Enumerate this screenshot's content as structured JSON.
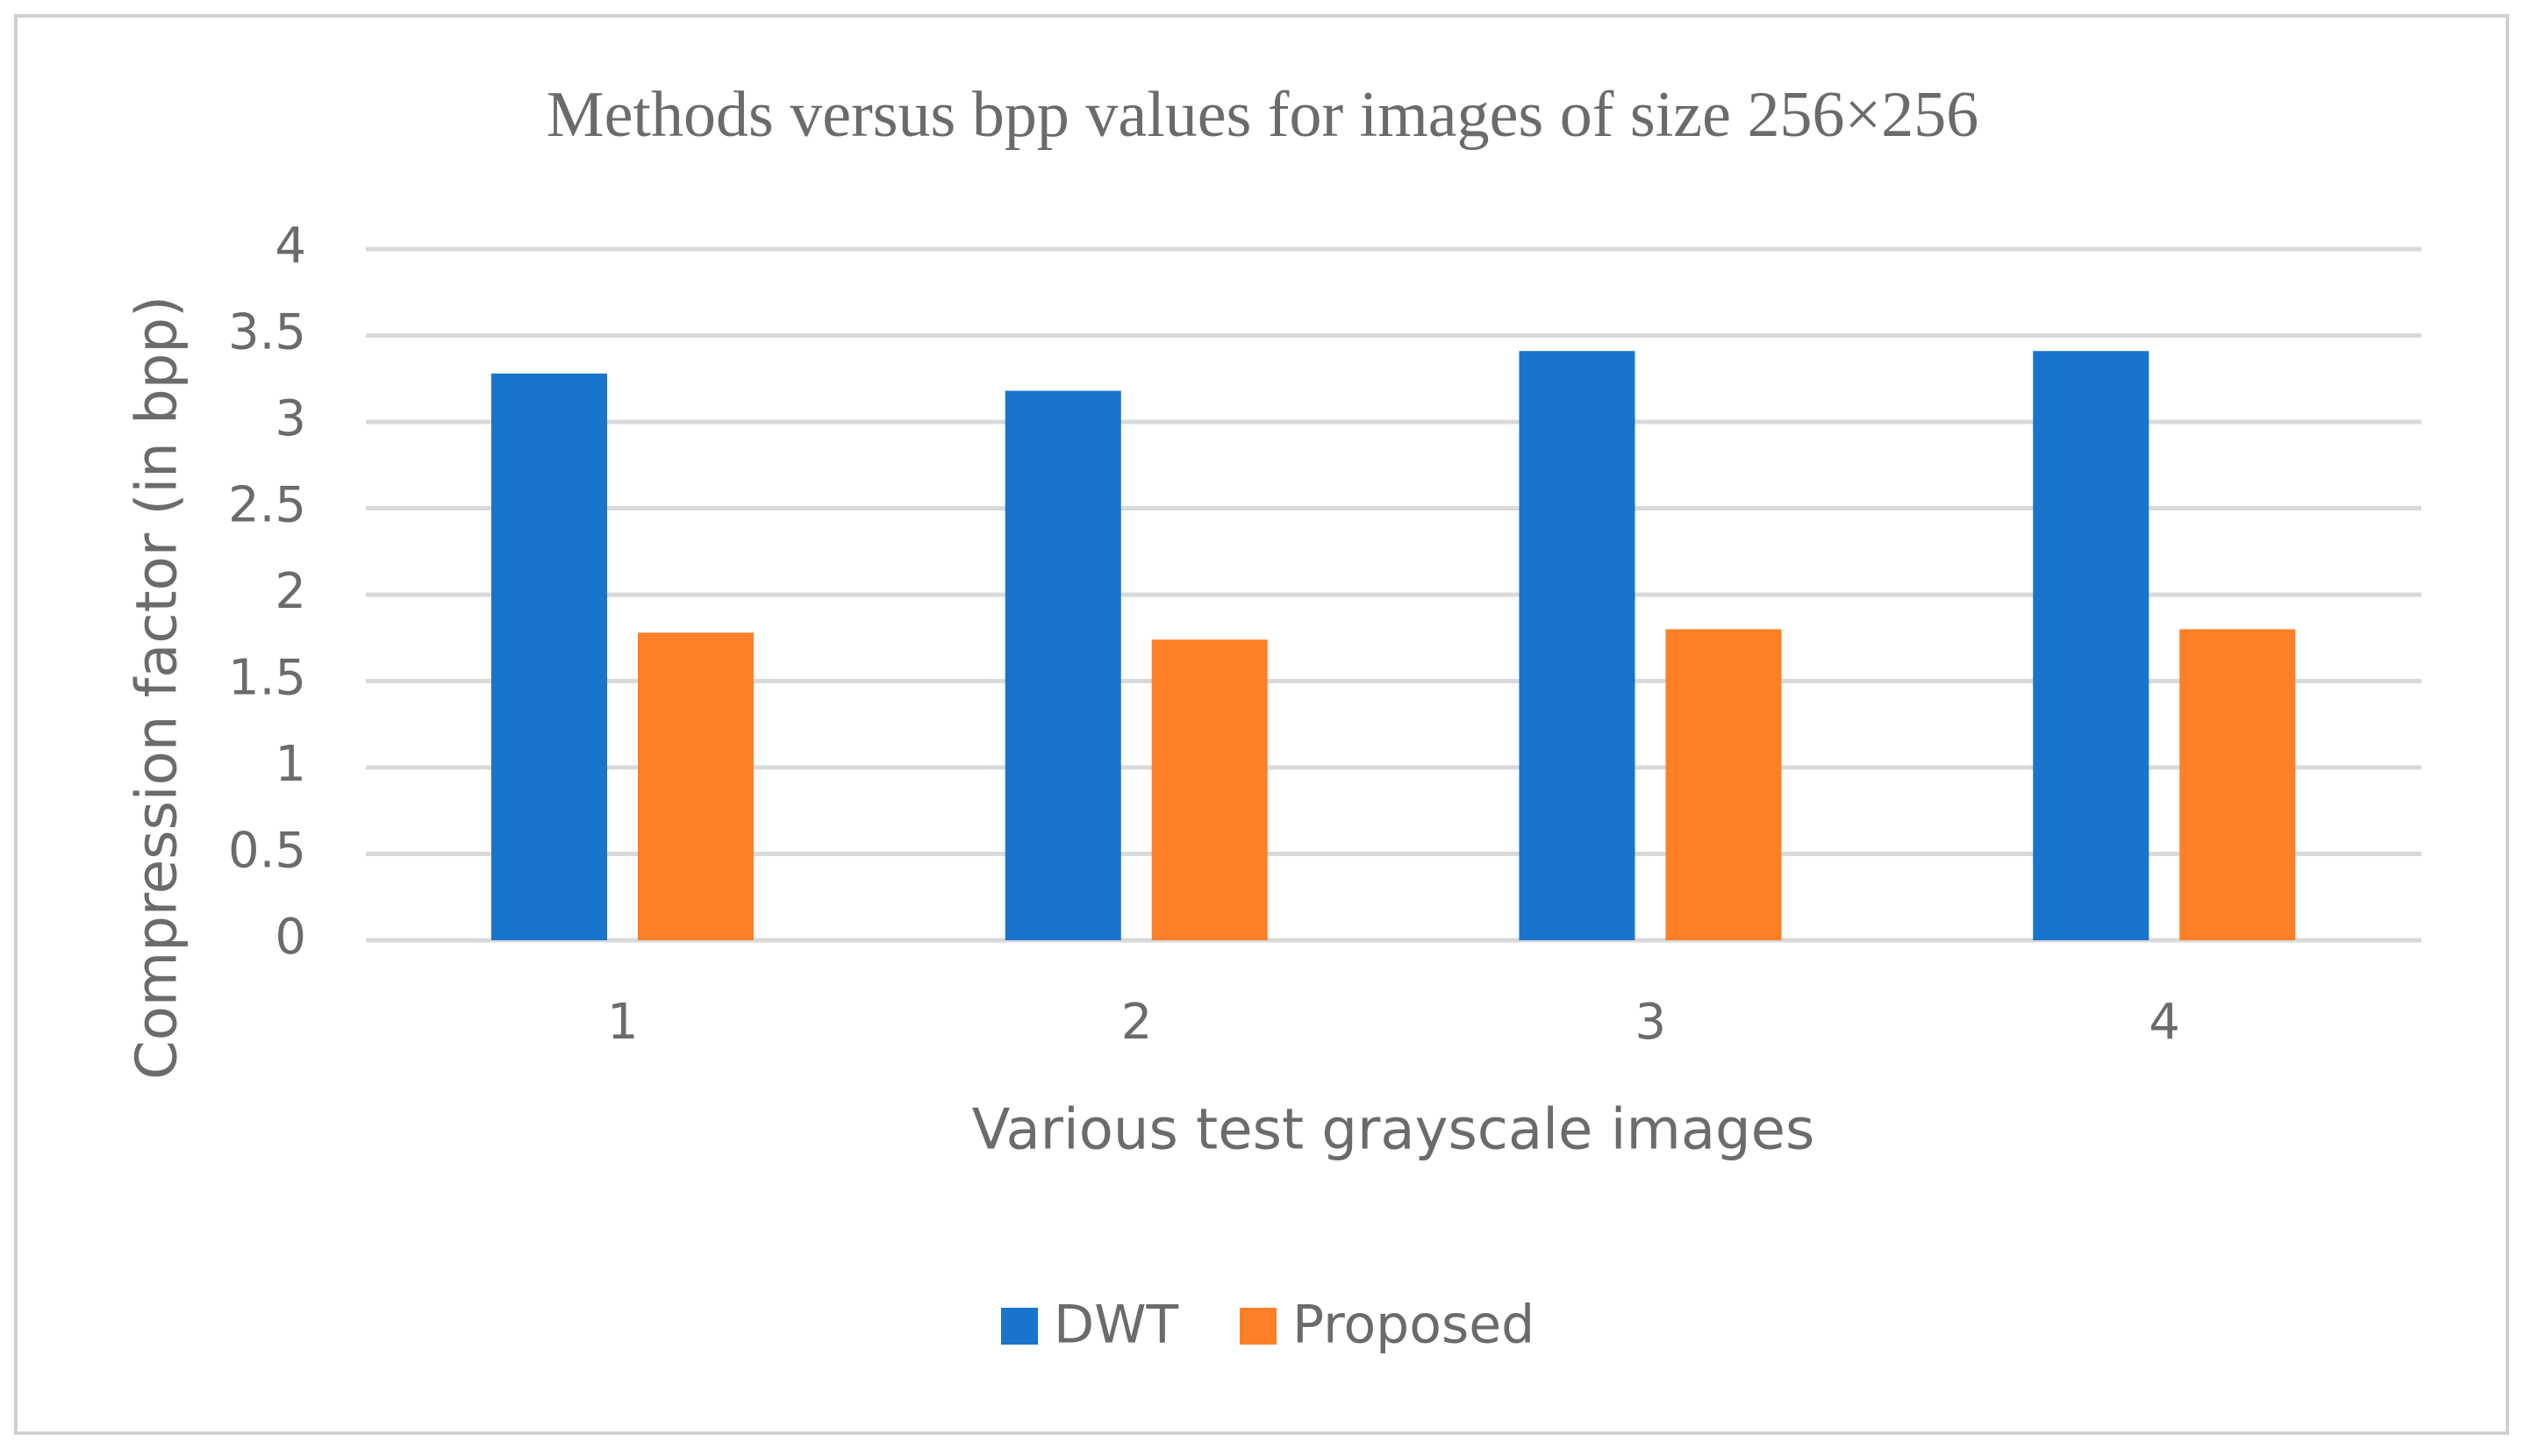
{
  "chart_data": {
    "type": "bar",
    "title": "Methods versus bpp values for images of size 256×256",
    "x_label": "Various test grayscale images",
    "y_label": "Compression factor (in bpp)",
    "categories": [
      "1",
      "2",
      "3",
      "4"
    ],
    "series": [
      {
        "name": "DWT",
        "color": "#1874cd",
        "values": [
          3.28,
          3.18,
          3.41,
          3.41
        ]
      },
      {
        "name": "Proposed",
        "color": "#ff7f27",
        "values": [
          1.78,
          1.74,
          1.8,
          1.8
        ]
      }
    ],
    "ylim": [
      0,
      4
    ],
    "yticks": [
      0,
      0.5,
      1,
      1.5,
      2,
      2.5,
      3,
      3.5,
      4
    ],
    "grid": true,
    "legend": "bottom"
  }
}
